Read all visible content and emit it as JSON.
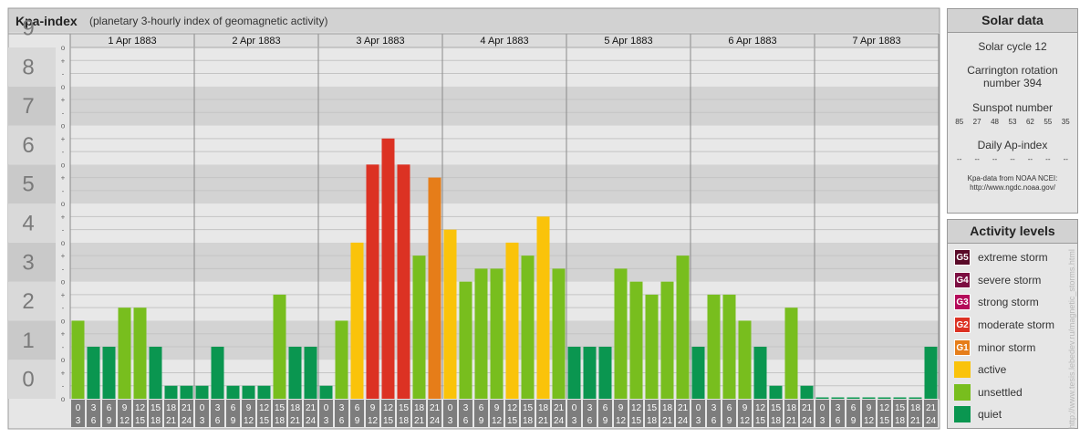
{
  "header": {
    "title": "Kpa-index",
    "subtitle": "(planetary 3-hourly index of geomagnetic activity)"
  },
  "chart_data": {
    "type": "bar",
    "y_axis_labels": [
      "0",
      "1",
      "2",
      "3",
      "4",
      "5",
      "6",
      "7",
      "8",
      "9"
    ],
    "ylim": [
      0,
      9
    ],
    "minor_tick_signs": [
      "+",
      "o",
      "-"
    ],
    "days": [
      "1 Apr 1883",
      "2 Apr 1883",
      "3 Apr 1883",
      "4 Apr 1883",
      "5 Apr 1883",
      "6 Apr 1883",
      "7 Apr 1883"
    ],
    "hour_start_labels": [
      "0",
      "3",
      "6",
      "9",
      "12",
      "15",
      "18",
      "21"
    ],
    "hour_end_labels": [
      "3",
      "6",
      "9",
      "12",
      "15",
      "18",
      "21",
      "24"
    ],
    "values": [
      2.0,
      1.333,
      1.333,
      2.333,
      2.333,
      1.333,
      0.333,
      0.333,
      0.333,
      1.333,
      0.333,
      0.333,
      0.333,
      2.667,
      1.333,
      1.333,
      0.333,
      2.0,
      4.0,
      6.0,
      6.667,
      6.0,
      3.667,
      5.667,
      4.333,
      3.0,
      3.333,
      3.333,
      4.0,
      3.667,
      4.667,
      3.333,
      1.333,
      1.333,
      1.333,
      3.333,
      3.0,
      2.667,
      3.0,
      3.667,
      1.333,
      2.667,
      2.667,
      2.0,
      1.333,
      0.333,
      2.333,
      0.333,
      0.0,
      0.0,
      0.0,
      0.0,
      0.0,
      0.0,
      0.0,
      1.333
    ],
    "grid": true
  },
  "solar_data": {
    "title": "Solar data",
    "cycle": "Solar cycle 12",
    "rotation_line1": "Carrington rotation",
    "rotation_line2": "number 394",
    "sunspot_label": "Sunspot number",
    "sunspot_values": [
      "85",
      "27",
      "48",
      "53",
      "62",
      "55",
      "35"
    ],
    "ap_label": "Daily Ap-index",
    "ap_values": [
      "--",
      "--",
      "--",
      "--",
      "--",
      "--",
      "--"
    ],
    "source_line1": "Kpa-data from NOAA NCEI:",
    "source_line2": "http://www.ngdc.noaa.gov/"
  },
  "activity_levels": {
    "title": "Activity levels",
    "items": [
      {
        "code": "G5",
        "label": "extreme storm",
        "color": "#5a0a28"
      },
      {
        "code": "G4",
        "label": "severe storm",
        "color": "#7c0d41"
      },
      {
        "code": "G3",
        "label": "strong storm",
        "color": "#b40a5a"
      },
      {
        "code": "G2",
        "label": "moderate storm",
        "color": "#dc3223"
      },
      {
        "code": "G1",
        "label": "minor storm",
        "color": "#e67d19"
      },
      {
        "code": "",
        "label": "active",
        "color": "#fac30a"
      },
      {
        "code": "",
        "label": "unsettled",
        "color": "#78be1e"
      },
      {
        "code": "",
        "label": "quiet",
        "color": "#0a9650"
      }
    ]
  },
  "watermark": "http://www.tesis.lebedev.ru/magnetic_storms.html"
}
